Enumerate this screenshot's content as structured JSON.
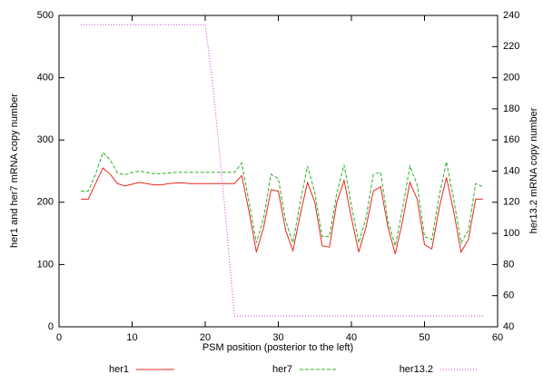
{
  "chart_data": {
    "type": "line",
    "xlabel": "PSM position (posterior to the left)",
    "ylabel": "her1 and her7 mRNA copy number",
    "y2label": "her13.2 mRNA copy number",
    "x": [
      3,
      4,
      5,
      6,
      7,
      8,
      9,
      10,
      11,
      12,
      13,
      14,
      15,
      16,
      17,
      18,
      19,
      20,
      21,
      22,
      23,
      24,
      25,
      26,
      27,
      28,
      29,
      30,
      31,
      32,
      33,
      34,
      35,
      36,
      37,
      38,
      39,
      40,
      41,
      42,
      43,
      44,
      45,
      46,
      47,
      48,
      49,
      50,
      51,
      52,
      53,
      54,
      55,
      56,
      57,
      58
    ],
    "series": [
      {
        "name": "her1",
        "color": "#e8281e",
        "line_style": "solid",
        "values": [
          205,
          205,
          230,
          255,
          245,
          230,
          226,
          229,
          232,
          230,
          228,
          228,
          230,
          231,
          231,
          230,
          230,
          230,
          230,
          230,
          230,
          230,
          243,
          185,
          120,
          160,
          220,
          218,
          155,
          122,
          180,
          232,
          200,
          130,
          128,
          200,
          235,
          175,
          120,
          160,
          218,
          225,
          160,
          117,
          170,
          232,
          205,
          132,
          125,
          190,
          240,
          185,
          120,
          140,
          205,
          205
        ]
      },
      {
        "name": "her7",
        "color": "#2bb12b",
        "line_style": "dashed",
        "values": [
          218,
          218,
          245,
          280,
          268,
          247,
          244,
          248,
          250,
          248,
          246,
          246,
          247,
          248,
          248,
          248,
          248,
          248,
          248,
          248,
          248,
          248,
          263,
          200,
          135,
          175,
          245,
          238,
          170,
          135,
          200,
          258,
          215,
          145,
          145,
          215,
          260,
          195,
          135,
          175,
          245,
          248,
          170,
          130,
          190,
          258,
          228,
          145,
          140,
          210,
          265,
          205,
          135,
          155,
          230,
          225
        ]
      },
      {
        "name": "her13.2",
        "color": "#d63ad6",
        "line_style": "dotted",
        "axis": "y2",
        "values": [
          234,
          234,
          234,
          234,
          234,
          234,
          234,
          234,
          234,
          234,
          234,
          234,
          234,
          234,
          234,
          234,
          234,
          234,
          197,
          150,
          100,
          47,
          47,
          47,
          47,
          47,
          47,
          47,
          47,
          47,
          47,
          47,
          47,
          47,
          47,
          47,
          47,
          47,
          47,
          47,
          47,
          47,
          47,
          47,
          47,
          47,
          47,
          47,
          47,
          47,
          47,
          47,
          47,
          47,
          47,
          47
        ]
      }
    ],
    "xlim": [
      0,
      60
    ],
    "xticks": [
      0,
      10,
      20,
      30,
      40,
      50,
      60
    ],
    "ylim": [
      0,
      500
    ],
    "yticks": [
      0,
      100,
      200,
      300,
      400,
      500
    ],
    "y2lim": [
      40,
      240
    ],
    "y2ticks": [
      40,
      60,
      80,
      100,
      120,
      140,
      160,
      180,
      200,
      220,
      240
    ],
    "grid": false,
    "legend": "bottom"
  }
}
